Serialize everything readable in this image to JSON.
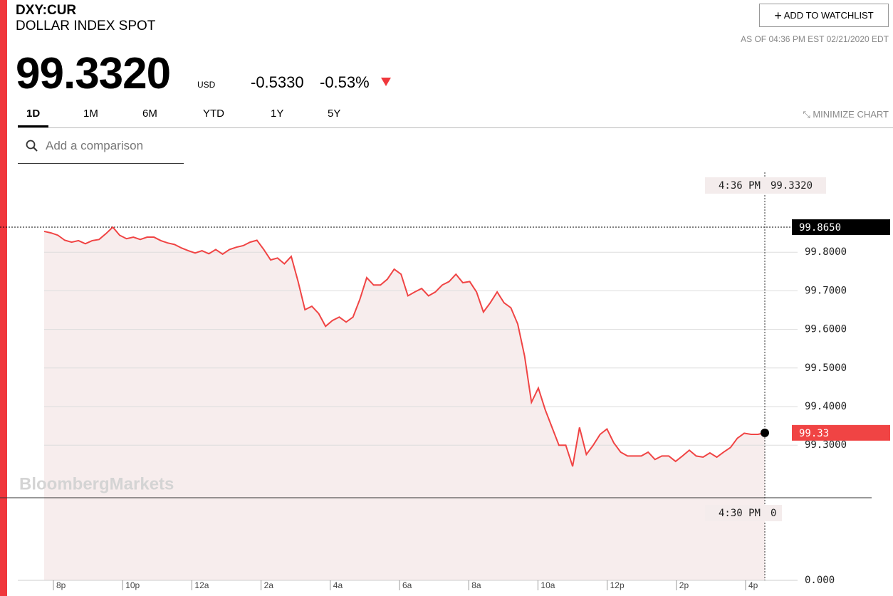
{
  "header": {
    "ticker": "DXY:CUR",
    "name": "DOLLAR INDEX SPOT",
    "price": "99.3320",
    "currency": "USD",
    "change": "-0.5330",
    "change_pct": "-0.53%",
    "as_of": "AS OF 04:36 PM EST 02/21/2020 EDT"
  },
  "watchlist_button": "ADD TO WATCHLIST",
  "tabs": [
    "1D",
    "1M",
    "6M",
    "YTD",
    "1Y",
    "5Y"
  ],
  "minimize": "MINIMIZE CHART",
  "search_placeholder": "Add a comparison",
  "watermark": "BloombergMarkets",
  "chart_data": {
    "type": "line",
    "color": "#f04444",
    "values": [
      99.854,
      99.85,
      99.844,
      99.831,
      99.826,
      99.83,
      99.822,
      99.83,
      99.833,
      99.848,
      99.865,
      99.844,
      99.835,
      99.839,
      99.833,
      99.839,
      99.839,
      99.83,
      99.824,
      99.82,
      99.811,
      99.804,
      99.798,
      99.804,
      99.796,
      99.807,
      99.795,
      99.807,
      99.813,
      99.817,
      99.826,
      99.831,
      99.807,
      99.78,
      99.785,
      99.77,
      99.789,
      99.724,
      99.651,
      99.66,
      99.641,
      99.608,
      99.623,
      99.632,
      99.619,
      99.632,
      99.678,
      99.734,
      99.715,
      99.715,
      99.73,
      99.756,
      99.743,
      99.687,
      99.697,
      99.706,
      99.687,
      99.697,
      99.715,
      99.724,
      99.743,
      99.721,
      99.724,
      99.697,
      99.645,
      99.669,
      99.697,
      99.669,
      99.656,
      99.614,
      99.531,
      99.411,
      99.448,
      99.392,
      99.346,
      99.3,
      99.3,
      99.245,
      99.346,
      99.276,
      99.3,
      99.328,
      99.342,
      99.306,
      99.282,
      99.272,
      99.272,
      99.272,
      99.282,
      99.263,
      99.272,
      99.272,
      99.258,
      99.272,
      99.287,
      99.272,
      99.269,
      99.28,
      99.269,
      99.282,
      99.294,
      99.318,
      99.331,
      99.328,
      99.328,
      99.332
    ],
    "ylim": [
      99.15,
      99.9
    ],
    "yticks": [
      {
        "value": 99.3,
        "label": "99.3000"
      },
      {
        "value": 99.4,
        "label": "99.4000"
      },
      {
        "value": 99.5,
        "label": "99.5000"
      },
      {
        "value": 99.6,
        "label": "99.6000"
      },
      {
        "value": 99.7,
        "label": "99.7000"
      },
      {
        "value": 99.8,
        "label": "99.8000"
      }
    ],
    "xtick_labels": [
      "8p",
      "10p",
      "12a",
      "2a",
      "4a",
      "6a",
      "8a",
      "10a",
      "12p",
      "2p",
      "4p"
    ],
    "high": {
      "value": 99.865,
      "label": "99.8650"
    },
    "last_label": "99.33",
    "crosshair_top": {
      "time": "4:36 PM",
      "value": "99.3320"
    },
    "crosshair_bottom": {
      "time": "4:30 PM",
      "value": "0"
    },
    "baseline_label": "0.000",
    "grid": true
  }
}
